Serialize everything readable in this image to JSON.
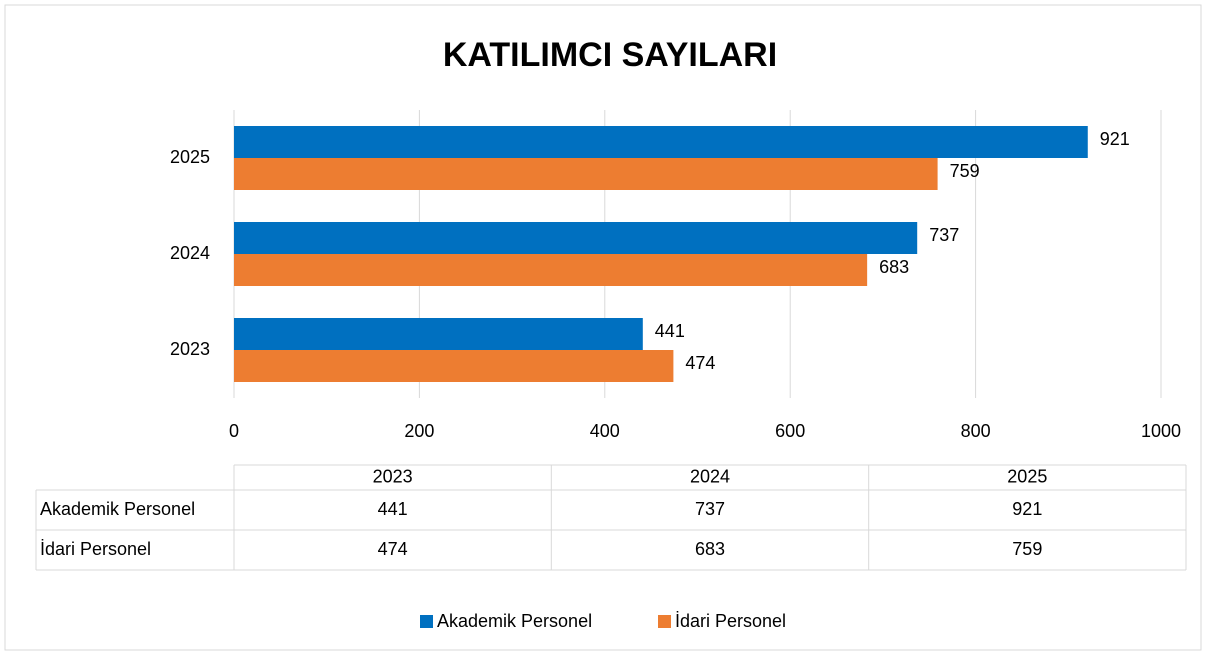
{
  "chart_data": {
    "type": "bar",
    "orientation": "horizontal",
    "title": "KATILIMCI SAYILARI",
    "categories": [
      "2023",
      "2024",
      "2025"
    ],
    "series": [
      {
        "name": "Akademik Personel",
        "color": "#0070c0",
        "values": [
          441,
          737,
          921
        ]
      },
      {
        "name": "İdari Personel",
        "color": "#ed7d31",
        "values": [
          474,
          683,
          759
        ]
      }
    ],
    "xlim": [
      0,
      1000
    ],
    "xticks": [
      0,
      200,
      400,
      600,
      800,
      1000
    ],
    "grid": true,
    "legend": "bottom",
    "data_table": true
  }
}
